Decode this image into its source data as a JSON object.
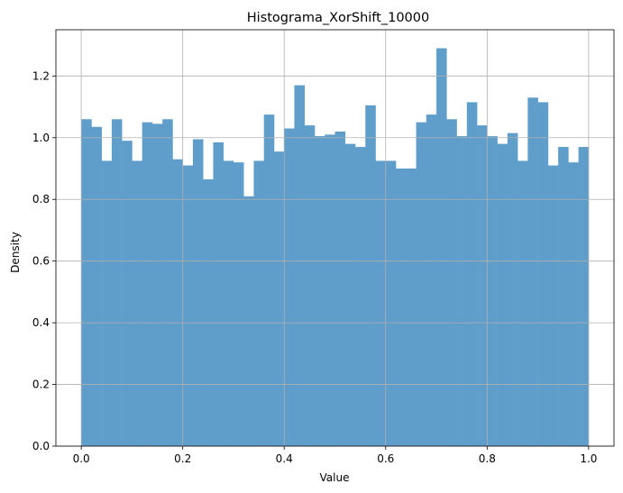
{
  "chart_data": {
    "type": "bar",
    "title": "Histograma_XorShift_10000",
    "xlabel": "Value",
    "ylabel": "Density",
    "xlim": [
      -0.05,
      1.05
    ],
    "ylim": [
      0,
      1.35
    ],
    "x_ticks": [
      0.0,
      0.2,
      0.4,
      0.6,
      0.8,
      1.0
    ],
    "x_tick_labels": [
      "0.0",
      "0.2",
      "0.4",
      "0.6",
      "0.8",
      "1.0"
    ],
    "y_ticks": [
      0.0,
      0.2,
      0.4,
      0.6,
      0.8,
      1.0,
      1.2
    ],
    "y_tick_labels": [
      "0.0",
      "0.2",
      "0.4",
      "0.6",
      "0.8",
      "1.0",
      "1.2"
    ],
    "grid": true,
    "bar_color": "#5f9ecb",
    "bin_start": 0.0,
    "bin_width": 0.02,
    "values": [
      1.06,
      1.035,
      0.925,
      1.06,
      0.99,
      0.925,
      1.05,
      1.045,
      1.06,
      0.93,
      0.91,
      0.995,
      0.865,
      0.985,
      0.925,
      0.92,
      0.81,
      0.925,
      1.075,
      0.955,
      1.03,
      1.17,
      1.04,
      1.005,
      1.01,
      1.02,
      0.98,
      0.97,
      1.105,
      0.925,
      0.925,
      0.9,
      0.9,
      1.05,
      1.075,
      1.29,
      1.06,
      1.005,
      1.115,
      1.04,
      1.005,
      0.98,
      1.015,
      0.925,
      1.13,
      1.115,
      0.91,
      0.97,
      0.92,
      0.97
    ]
  }
}
